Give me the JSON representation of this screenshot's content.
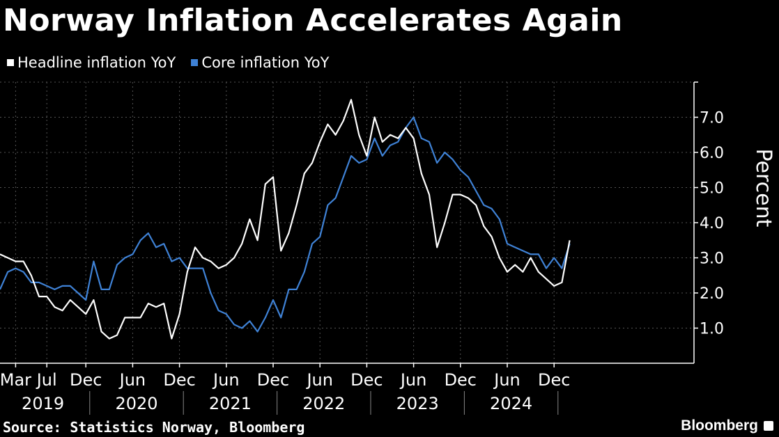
{
  "title": "Norway Inflation Accelerates Again",
  "source": "Source: Statistics Norway, Bloomberg",
  "brand": "Bloomberg",
  "colors": {
    "headline": "#ffffff",
    "core": "#3f82d6",
    "background": "#000000",
    "grid": "#555555"
  },
  "chart_data": {
    "type": "line",
    "title": "Norway Inflation Accelerates Again",
    "ylabel": "Percent",
    "ylim": [
      0,
      8
    ],
    "yticks": [
      1.0,
      2.0,
      3.0,
      4.0,
      5.0,
      6.0,
      7.0
    ],
    "x_start": "2019-01",
    "x_month_labels": [
      {
        "label": "Mar",
        "date": "2019-03"
      },
      {
        "label": "Jul",
        "date": "2019-07"
      },
      {
        "label": "Dec",
        "date": "2019-12"
      },
      {
        "label": "Jun",
        "date": "2020-06"
      },
      {
        "label": "Dec",
        "date": "2020-12"
      },
      {
        "label": "Jun",
        "date": "2021-06"
      },
      {
        "label": "Dec",
        "date": "2021-12"
      },
      {
        "label": "Jun",
        "date": "2022-06"
      },
      {
        "label": "Dec",
        "date": "2022-12"
      },
      {
        "label": "Jun",
        "date": "2023-06"
      },
      {
        "label": "Dec",
        "date": "2023-12"
      },
      {
        "label": "Jun",
        "date": "2024-06"
      },
      {
        "label": "Dec",
        "date": "2024-12"
      }
    ],
    "x_year_labels": [
      "2019",
      "2020",
      "2021",
      "2022",
      "2023",
      "2024"
    ],
    "legend_position": "top-left",
    "series": [
      {
        "name": "Headline inflation YoY",
        "values": [
          3.1,
          3.0,
          2.9,
          2.9,
          2.5,
          1.9,
          1.9,
          1.6,
          1.5,
          1.8,
          1.6,
          1.4,
          1.8,
          0.9,
          0.7,
          0.8,
          1.3,
          1.3,
          1.3,
          1.7,
          1.6,
          1.7,
          0.7,
          1.4,
          2.6,
          3.3,
          3.0,
          2.9,
          2.7,
          2.8,
          3.0,
          3.4,
          4.1,
          3.5,
          5.1,
          5.3,
          3.2,
          3.7,
          4.5,
          5.4,
          5.7,
          6.3,
          6.8,
          6.5,
          6.9,
          7.5,
          6.5,
          5.9,
          7.0,
          6.3,
          6.5,
          6.4,
          6.7,
          6.4,
          5.4,
          4.8,
          3.3,
          4.0,
          4.8,
          4.8,
          4.7,
          4.5,
          3.9,
          3.6,
          3.0,
          2.6,
          2.8,
          2.6,
          3.0,
          2.6,
          2.4,
          2.2,
          2.3,
          3.5
        ]
      },
      {
        "name": "Core inflation YoY",
        "values": [
          2.1,
          2.6,
          2.7,
          2.6,
          2.3,
          2.3,
          2.2,
          2.1,
          2.2,
          2.2,
          2.0,
          1.8,
          2.9,
          2.1,
          2.1,
          2.8,
          3.0,
          3.1,
          3.5,
          3.7,
          3.3,
          3.4,
          2.9,
          3.0,
          2.7,
          2.7,
          2.7,
          2.0,
          1.5,
          1.4,
          1.1,
          1.0,
          1.2,
          0.9,
          1.3,
          1.8,
          1.3,
          2.1,
          2.1,
          2.6,
          3.4,
          3.6,
          4.5,
          4.7,
          5.3,
          5.9,
          5.7,
          5.8,
          6.4,
          5.9,
          6.2,
          6.3,
          6.7,
          7.0,
          6.4,
          6.3,
          5.7,
          6.0,
          5.8,
          5.5,
          5.3,
          4.9,
          4.5,
          4.4,
          4.1,
          3.4,
          3.3,
          3.2,
          3.1,
          3.1,
          2.7,
          3.0,
          2.7,
          3.4
        ]
      }
    ]
  }
}
